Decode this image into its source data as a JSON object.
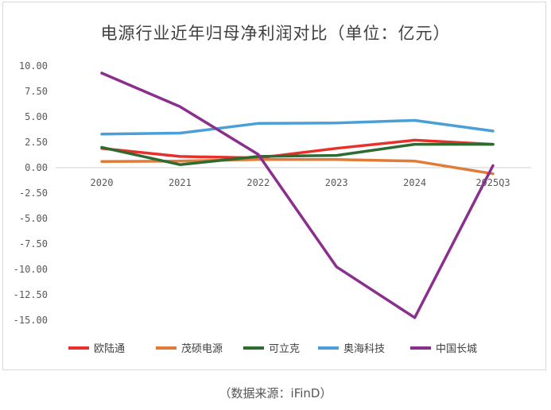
{
  "chart_data": {
    "type": "line",
    "title": "电源行业近年归母净利润对比（单位：亿元）",
    "categories": [
      "2020",
      "2021",
      "2022",
      "2023",
      "2024",
      "2025Q3"
    ],
    "ylim": [
      -15,
      10
    ],
    "yticks": [
      10,
      7.5,
      5,
      2.5,
      0,
      -2.5,
      -5,
      -7.5,
      -10,
      -12.5,
      -15
    ],
    "ytick_labels": [
      "10.00",
      "7.50",
      "5.00",
      "2.50",
      "0.00",
      "-2.50",
      "-5.00",
      "-7.50",
      "-10.00",
      "-12.50",
      "-15.00"
    ],
    "grid": false,
    "legend_position": "bottom",
    "series": [
      {
        "name": "欧陆通",
        "color": "#e8302a",
        "values": [
          1.9,
          1.1,
          0.95,
          1.9,
          2.7,
          2.3
        ]
      },
      {
        "name": "茂硕电源",
        "color": "#e07b39",
        "values": [
          0.6,
          0.65,
          0.8,
          0.8,
          0.65,
          -0.6
        ]
      },
      {
        "name": "可立克",
        "color": "#2e6b30",
        "values": [
          2.0,
          0.3,
          1.1,
          1.2,
          2.3,
          2.3
        ]
      },
      {
        "name": "奥海科技",
        "color": "#4a9fd8",
        "values": [
          3.3,
          3.4,
          4.35,
          4.4,
          4.65,
          3.6
        ]
      },
      {
        "name": "中国长城",
        "color": "#8b2f8e",
        "values": [
          9.3,
          6.0,
          1.3,
          -9.75,
          -14.75,
          0.2
        ]
      }
    ]
  },
  "source_note": "（数据来源：iFinD）"
}
